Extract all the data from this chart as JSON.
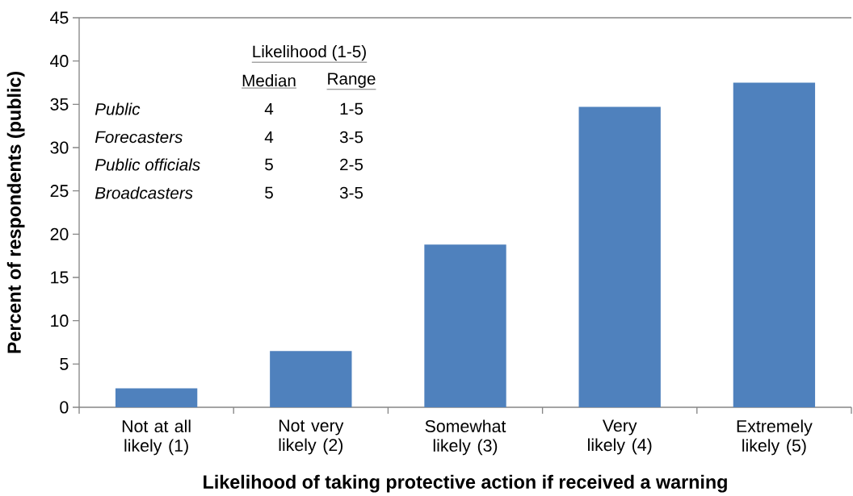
{
  "chart_data": {
    "type": "bar",
    "xlabel": "Likelihood of taking protective action if received a warning",
    "ylabel": "Percent of respondents (public)",
    "categories": [
      "Not at all likely (1)",
      "Not very likely (2)",
      "Somewhat likely (3)",
      "Very likely (4)",
      "Extremely likely (5)"
    ],
    "values": [
      2.2,
      6.5,
      18.8,
      34.7,
      37.5
    ],
    "color": "#4f81bd",
    "ylim": [
      0,
      45
    ],
    "yticks": [
      0,
      5,
      10,
      15,
      20,
      25,
      30,
      35,
      40,
      45
    ],
    "annotations": [
      "Likelihood (1-5)",
      "Median",
      "Range",
      "Public",
      "4",
      "1-5",
      "Forecasters",
      "4",
      "3-5",
      "Public officials",
      "5",
      "2-5",
      "Broadcasters",
      "5",
      "3-5"
    ]
  }
}
